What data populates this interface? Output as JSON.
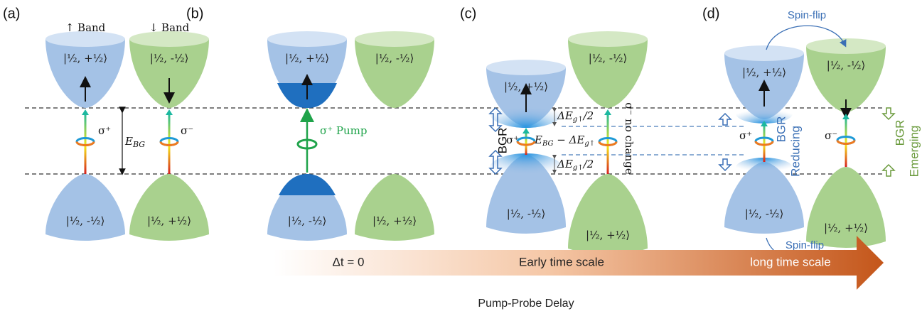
{
  "panels": [
    {
      "label": "(a)",
      "band_headers": [
        "↑ Band",
        "↓ Band"
      ],
      "states": [
        "|½, +½⟩",
        "|½, -½⟩",
        "|½, -½⟩",
        "|½, +½⟩"
      ],
      "transitions": [
        "σ⁺",
        "σ⁻"
      ],
      "gap": {
        "main": "E",
        "sub": "BG"
      }
    },
    {
      "label": "(b)",
      "states": [
        "|½, +½⟩",
        "|½, -½⟩",
        "|½, -½⟩",
        "|½, +½⟩"
      ],
      "pump": "σ⁺ Pump"
    },
    {
      "label": "(c)",
      "states": [
        "|½, +½⟩",
        "|½, -½⟩",
        "|½, -½⟩",
        "|½, +½⟩"
      ],
      "bgr": "BGR",
      "upper_shift": {
        "main": "ΔE",
        "sub": "g↑",
        "tail": "/2"
      },
      "reduced_gap": {
        "main": "E",
        "sub": "BG",
        "mid": " − ΔE",
        "sub2": "g↑"
      },
      "lower_shift": {
        "main": "ΔE",
        "sub": "g↑",
        "tail": "/2"
      },
      "transitions": [
        "σ⁺",
        "σ⁻ no change"
      ]
    },
    {
      "label": "(d)",
      "states": [
        "|½, +½⟩",
        "|½, -½⟩",
        "|½, -½⟩",
        "|½, +½⟩"
      ],
      "spin_flip": [
        "Spin-flip",
        "Spin-flip"
      ],
      "transitions": [
        "σ⁺",
        "σ⁻"
      ],
      "reducing": [
        "BGR",
        "Reducing"
      ],
      "emerging": [
        "BGR",
        "Emerging"
      ]
    }
  ],
  "timeline": {
    "start": "Δt = 0",
    "middle": "Early time scale",
    "end": "long time scale",
    "axis_label": "Pump-Probe Delay"
  }
}
